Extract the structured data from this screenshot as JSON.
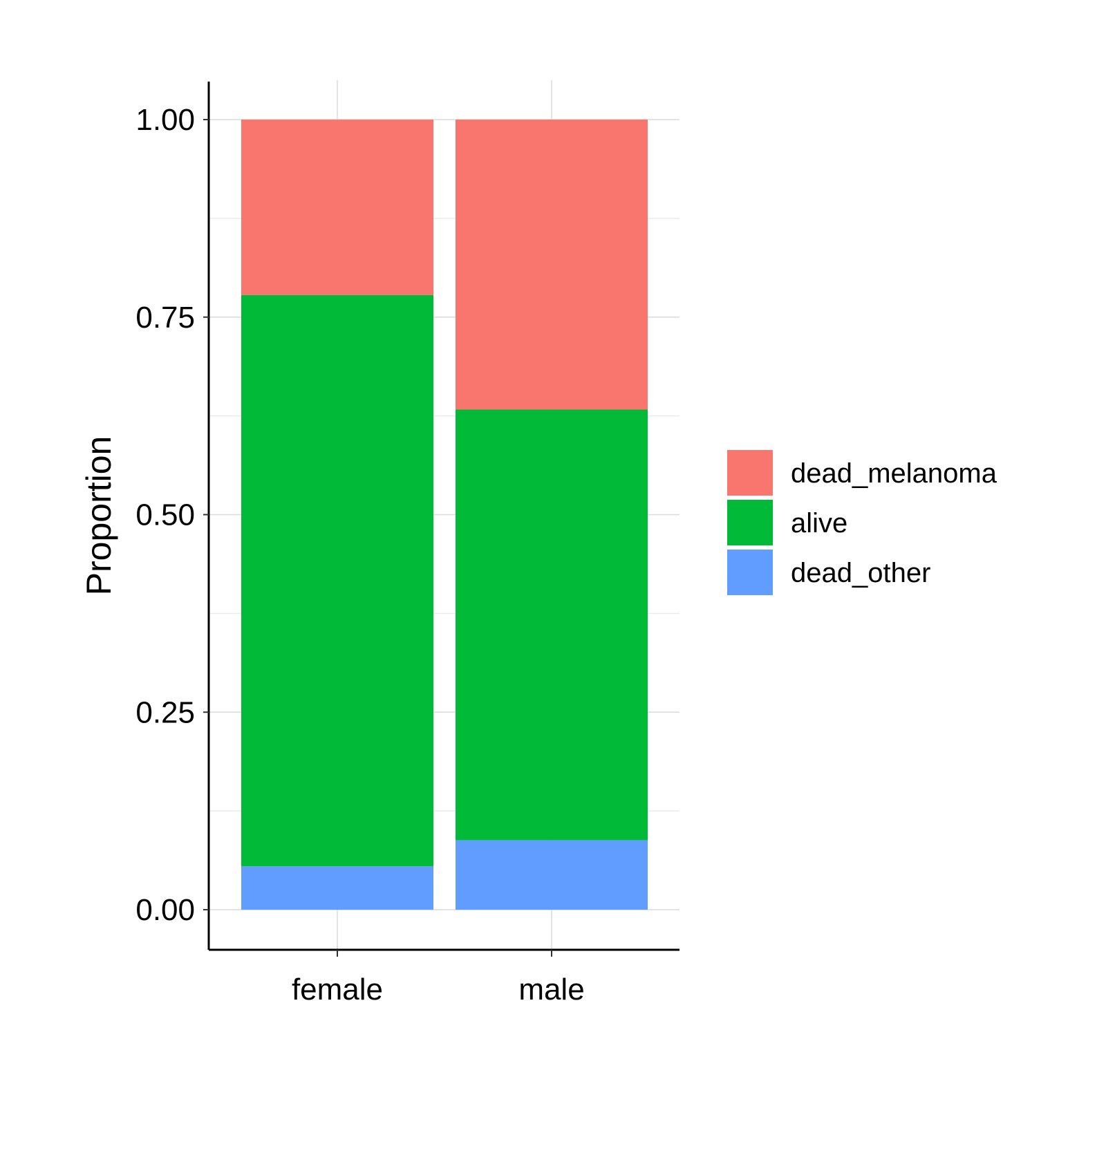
{
  "chart_data": {
    "type": "bar",
    "stacked": true,
    "title": "",
    "xlabel": "",
    "ylabel": "Proportion",
    "categories": [
      "female",
      "male"
    ],
    "ylim": [
      -0.05,
      1.05
    ],
    "yticks": [
      "0.00",
      "0.25",
      "0.50",
      "0.75",
      "1.00"
    ],
    "grid": true,
    "legend_position": "right",
    "series": [
      {
        "name": "dead_other",
        "color": "#619CFF",
        "values": [
          0.055,
          0.088
        ]
      },
      {
        "name": "alive",
        "color": "#00BA38",
        "values": [
          0.723,
          0.545
        ]
      },
      {
        "name": "dead_melanoma",
        "color": "#F8766D",
        "values": [
          0.222,
          0.367
        ]
      }
    ],
    "legend_order": [
      "dead_melanoma",
      "alive",
      "dead_other"
    ]
  }
}
